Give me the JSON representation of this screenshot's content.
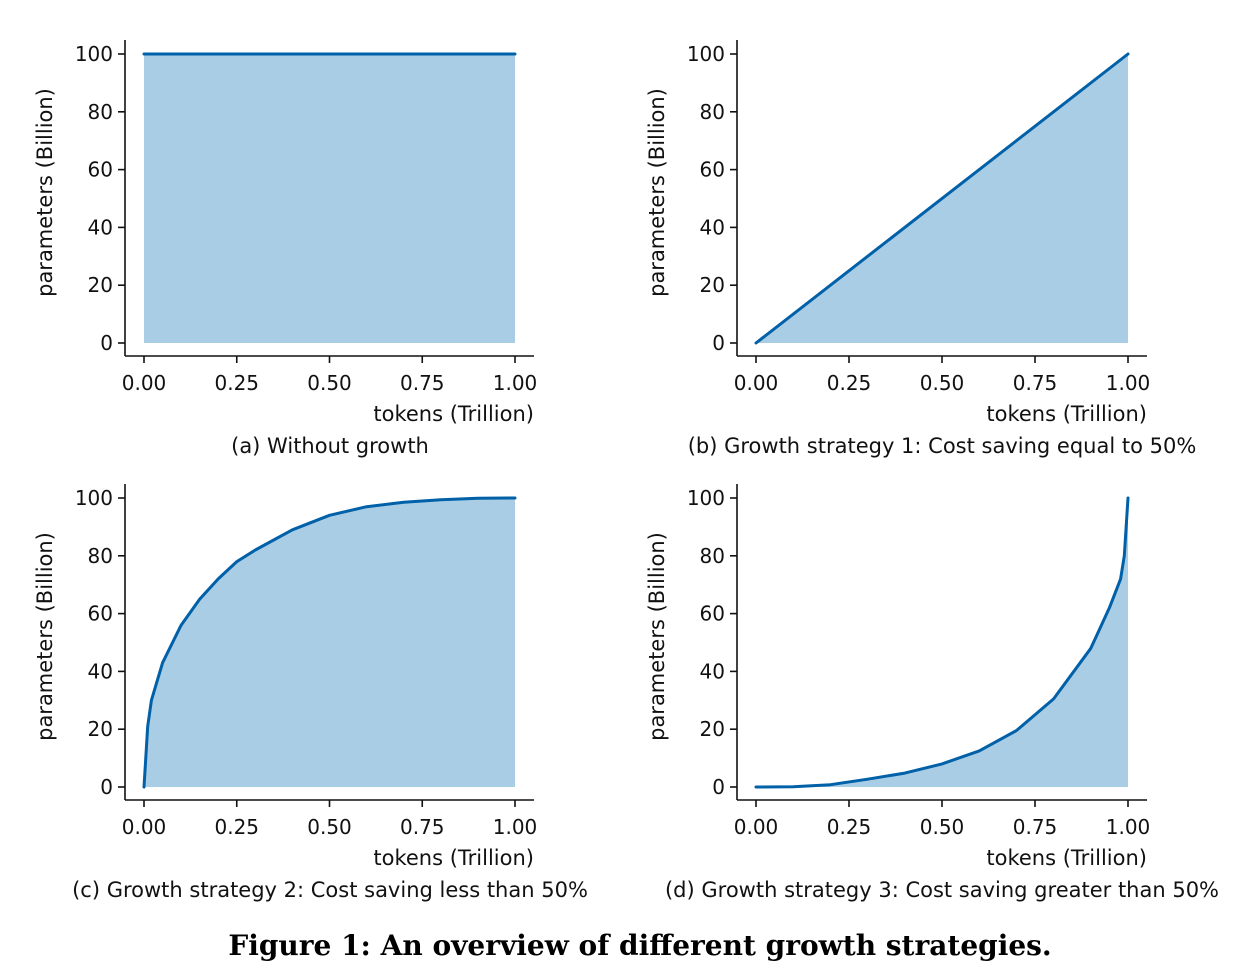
{
  "figure_caption": "Figure 1: An overview of different growth strategies.",
  "colors": {
    "line": "#0060a8",
    "fill": "#a8cde5",
    "axis": "#111111"
  },
  "chart_data": [
    {
      "type": "area",
      "caption": "(a) Without growth",
      "xlabel": "tokens (Trillion)",
      "ylabel": "parameters (Billion)",
      "xlim": [
        0,
        1
      ],
      "ylim": [
        0,
        100
      ],
      "xticks": [
        0,
        0.25,
        0.5,
        0.75,
        1
      ],
      "xtick_labels": [
        "0.00",
        "0.25",
        "0.50",
        "0.75",
        "1.00"
      ],
      "yticks": [
        0,
        20,
        40,
        60,
        80,
        100
      ],
      "ytick_labels": [
        "0",
        "20",
        "40",
        "60",
        "80",
        "100"
      ],
      "x": [
        0,
        1
      ],
      "y": [
        100,
        100
      ]
    },
    {
      "type": "area",
      "caption": "(b) Growth strategy 1: Cost saving equal to 50%",
      "xlabel": "tokens (Trillion)",
      "ylabel": "parameters (Billion)",
      "xlim": [
        0,
        1
      ],
      "ylim": [
        0,
        100
      ],
      "xticks": [
        0,
        0.25,
        0.5,
        0.75,
        1
      ],
      "xtick_labels": [
        "0.00",
        "0.25",
        "0.50",
        "0.75",
        "1.00"
      ],
      "yticks": [
        0,
        20,
        40,
        60,
        80,
        100
      ],
      "ytick_labels": [
        "0",
        "20",
        "40",
        "60",
        "80",
        "100"
      ],
      "x": [
        0,
        1
      ],
      "y": [
        0,
        100
      ]
    },
    {
      "type": "area",
      "caption": "(c) Growth strategy 2: Cost saving less than 50%",
      "xlabel": "tokens (Trillion)",
      "ylabel": "parameters (Billion)",
      "xlim": [
        0,
        1
      ],
      "ylim": [
        0,
        100
      ],
      "xticks": [
        0,
        0.25,
        0.5,
        0.75,
        1
      ],
      "xtick_labels": [
        "0.00",
        "0.25",
        "0.50",
        "0.75",
        "1.00"
      ],
      "yticks": [
        0,
        20,
        40,
        60,
        80,
        100
      ],
      "ytick_labels": [
        "0",
        "20",
        "40",
        "60",
        "80",
        "100"
      ],
      "x": [
        0,
        0.01,
        0.02,
        0.05,
        0.1,
        0.15,
        0.2,
        0.25,
        0.3,
        0.4,
        0.5,
        0.6,
        0.7,
        0.8,
        0.9,
        1
      ],
      "y": [
        0,
        21,
        30,
        43,
        56,
        65,
        72,
        78,
        82,
        89,
        94,
        97,
        98.5,
        99.4,
        99.9,
        100
      ]
    },
    {
      "type": "area",
      "caption": "(d) Growth strategy 3: Cost saving greater than 50%",
      "xlabel": "tokens (Trillion)",
      "ylabel": "parameters (Billion)",
      "xlim": [
        0,
        1
      ],
      "ylim": [
        0,
        100
      ],
      "xticks": [
        0,
        0.25,
        0.5,
        0.75,
        1
      ],
      "xtick_labels": [
        "0.00",
        "0.25",
        "0.50",
        "0.75",
        "1.00"
      ],
      "yticks": [
        0,
        20,
        40,
        60,
        80,
        100
      ],
      "ytick_labels": [
        "0",
        "20",
        "40",
        "60",
        "80",
        "100"
      ],
      "x": [
        0,
        0.1,
        0.2,
        0.3,
        0.4,
        0.5,
        0.6,
        0.7,
        0.8,
        0.9,
        0.95,
        0.98,
        0.99,
        1
      ],
      "y": [
        0,
        0.1,
        0.8,
        2.7,
        4.8,
        8,
        12.5,
        19.5,
        30.5,
        48,
        62,
        72,
        80,
        100
      ]
    }
  ]
}
